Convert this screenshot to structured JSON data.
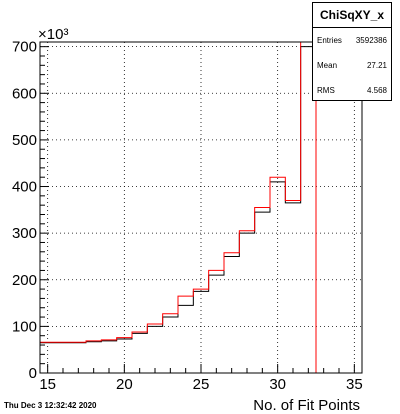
{
  "chart_data": {
    "type": "histogram",
    "title": "ChiSqXY_x",
    "xlabel": "No. of Fit Points",
    "ylabel": "",
    "y_multiplier_label": "×10³",
    "xlim": [
      14.5,
      35.5
    ],
    "ylim": [
      0,
      710
    ],
    "xticks": [
      15,
      20,
      25,
      30,
      35
    ],
    "yticks": [
      0,
      100,
      200,
      300,
      400,
      500,
      600,
      700
    ],
    "grid": true,
    "bin_edges": [
      14.5,
      15.5,
      16.5,
      17.5,
      18.5,
      19.5,
      20.5,
      21.5,
      22.5,
      23.5,
      24.5,
      25.5,
      26.5,
      27.5,
      28.5,
      29.5,
      30.5,
      31.5,
      32.5,
      33.5,
      34.5,
      35.5
    ],
    "series": [
      {
        "color": "#000000",
        "values": [
          65,
          65,
          65,
          67,
          69,
          73,
          85,
          100,
          120,
          145,
          175,
          210,
          250,
          300,
          345,
          410,
          365,
          700,
          0,
          0,
          0
        ]
      },
      {
        "color": "#ff0000",
        "values": [
          66,
          66,
          66,
          69,
          71,
          76,
          88,
          105,
          127,
          165,
          180,
          220,
          258,
          305,
          355,
          420,
          370,
          710,
          0,
          0,
          0
        ]
      }
    ]
  },
  "stats": {
    "title": "ChiSqXY_x",
    "entries_label": "Entries",
    "entries_value": "3592386",
    "mean_label": "Mean",
    "mean_value": "27.21",
    "rms_label": "RMS",
    "rms_value": "4.568"
  },
  "timestamp": "Thu Dec  3 12:32:42 2020"
}
